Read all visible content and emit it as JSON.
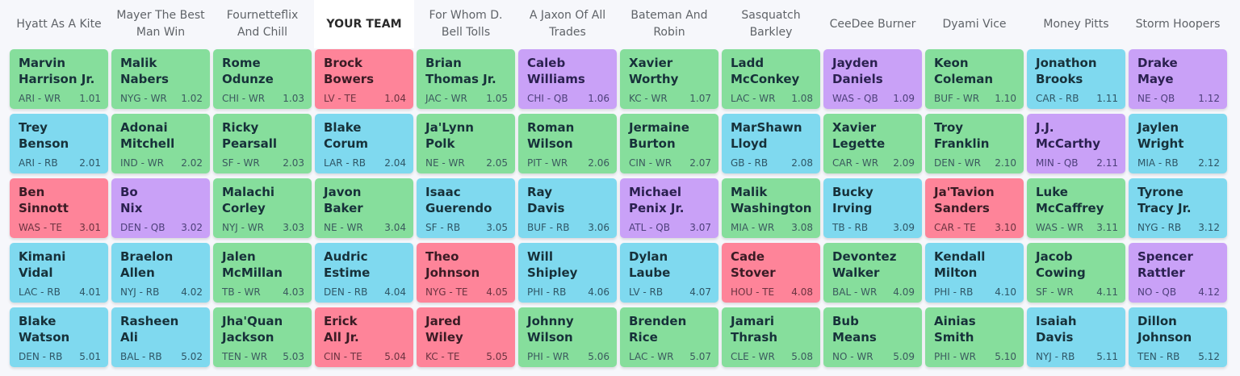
{
  "colors": {
    "WR": "#86de9c",
    "RB": "#7fd9ef",
    "TE": "#fe8499",
    "QB": "#c9a1f7",
    "background": "#f6f7fb",
    "your_team_header_bg": "#ffffff"
  },
  "teams": [
    {
      "name": "Hyatt As A Kite",
      "mine": false
    },
    {
      "name": "Mayer The Best Man Win",
      "mine": false
    },
    {
      "name": "Fournetteflix And Chill",
      "mine": false
    },
    {
      "name": "YOUR TEAM",
      "mine": true
    },
    {
      "name": "For Whom D. Bell Tolls",
      "mine": false
    },
    {
      "name": "A Jaxon Of All Trades",
      "mine": false
    },
    {
      "name": "Bateman And Robin",
      "mine": false
    },
    {
      "name": "Sasquatch Barkley",
      "mine": false
    },
    {
      "name": "CeeDee Burner",
      "mine": false
    },
    {
      "name": "Dyami Vice",
      "mine": false
    },
    {
      "name": "Money Pitts",
      "mine": false
    },
    {
      "name": "Storm Hoopers",
      "mine": false
    }
  ],
  "rounds": [
    [
      {
        "first": "Marvin",
        "last": "Harrison Jr.",
        "team": "ARI",
        "pos": "WR",
        "pick": "1.01"
      },
      {
        "first": "Malik",
        "last": "Nabers",
        "team": "NYG",
        "pos": "WR",
        "pick": "1.02"
      },
      {
        "first": "Rome",
        "last": "Odunze",
        "team": "CHI",
        "pos": "WR",
        "pick": "1.03"
      },
      {
        "first": "Brock",
        "last": "Bowers",
        "team": "LV",
        "pos": "TE",
        "pick": "1.04"
      },
      {
        "first": "Brian",
        "last": "Thomas Jr.",
        "team": "JAC",
        "pos": "WR",
        "pick": "1.05"
      },
      {
        "first": "Caleb",
        "last": "Williams",
        "team": "CHI",
        "pos": "QB",
        "pick": "1.06"
      },
      {
        "first": "Xavier",
        "last": "Worthy",
        "team": "KC",
        "pos": "WR",
        "pick": "1.07"
      },
      {
        "first": "Ladd",
        "last": "McConkey",
        "team": "LAC",
        "pos": "WR",
        "pick": "1.08"
      },
      {
        "first": "Jayden",
        "last": "Daniels",
        "team": "WAS",
        "pos": "QB",
        "pick": "1.09"
      },
      {
        "first": "Keon",
        "last": "Coleman",
        "team": "BUF",
        "pos": "WR",
        "pick": "1.10"
      },
      {
        "first": "Jonathon",
        "last": "Brooks",
        "team": "CAR",
        "pos": "RB",
        "pick": "1.11"
      },
      {
        "first": "Drake",
        "last": "Maye",
        "team": "NE",
        "pos": "QB",
        "pick": "1.12"
      }
    ],
    [
      {
        "first": "Trey",
        "last": "Benson",
        "team": "ARI",
        "pos": "RB",
        "pick": "2.01"
      },
      {
        "first": "Adonai",
        "last": "Mitchell",
        "team": "IND",
        "pos": "WR",
        "pick": "2.02"
      },
      {
        "first": "Ricky",
        "last": "Pearsall",
        "team": "SF",
        "pos": "WR",
        "pick": "2.03"
      },
      {
        "first": "Blake",
        "last": "Corum",
        "team": "LAR",
        "pos": "RB",
        "pick": "2.04"
      },
      {
        "first": "Ja'Lynn",
        "last": "Polk",
        "team": "NE",
        "pos": "WR",
        "pick": "2.05"
      },
      {
        "first": "Roman",
        "last": "Wilson",
        "team": "PIT",
        "pos": "WR",
        "pick": "2.06"
      },
      {
        "first": "Jermaine",
        "last": "Burton",
        "team": "CIN",
        "pos": "WR",
        "pick": "2.07"
      },
      {
        "first": "MarShawn",
        "last": "Lloyd",
        "team": "GB",
        "pos": "RB",
        "pick": "2.08"
      },
      {
        "first": "Xavier",
        "last": "Legette",
        "team": "CAR",
        "pos": "WR",
        "pick": "2.09"
      },
      {
        "first": "Troy",
        "last": "Franklin",
        "team": "DEN",
        "pos": "WR",
        "pick": "2.10"
      },
      {
        "first": "J.J.",
        "last": "McCarthy",
        "team": "MIN",
        "pos": "QB",
        "pick": "2.11"
      },
      {
        "first": "Jaylen",
        "last": "Wright",
        "team": "MIA",
        "pos": "RB",
        "pick": "2.12"
      }
    ],
    [
      {
        "first": "Ben",
        "last": "Sinnott",
        "team": "WAS",
        "pos": "TE",
        "pick": "3.01"
      },
      {
        "first": "Bo",
        "last": "Nix",
        "team": "DEN",
        "pos": "QB",
        "pick": "3.02"
      },
      {
        "first": "Malachi",
        "last": "Corley",
        "team": "NYJ",
        "pos": "WR",
        "pick": "3.03"
      },
      {
        "first": "Javon",
        "last": "Baker",
        "team": "NE",
        "pos": "WR",
        "pick": "3.04"
      },
      {
        "first": "Isaac",
        "last": "Guerendo",
        "team": "SF",
        "pos": "RB",
        "pick": "3.05"
      },
      {
        "first": "Ray",
        "last": "Davis",
        "team": "BUF",
        "pos": "RB",
        "pick": "3.06"
      },
      {
        "first": "Michael",
        "last": "Penix Jr.",
        "team": "ATL",
        "pos": "QB",
        "pick": "3.07"
      },
      {
        "first": "Malik",
        "last": "Washington",
        "team": "MIA",
        "pos": "WR",
        "pick": "3.08"
      },
      {
        "first": "Bucky",
        "last": "Irving",
        "team": "TB",
        "pos": "RB",
        "pick": "3.09"
      },
      {
        "first": "Ja'Tavion",
        "last": "Sanders",
        "team": "CAR",
        "pos": "TE",
        "pick": "3.10"
      },
      {
        "first": "Luke",
        "last": "McCaffrey",
        "team": "WAS",
        "pos": "WR",
        "pick": "3.11"
      },
      {
        "first": "Tyrone",
        "last": "Tracy Jr.",
        "team": "NYG",
        "pos": "RB",
        "pick": "3.12"
      }
    ],
    [
      {
        "first": "Kimani",
        "last": "Vidal",
        "team": "LAC",
        "pos": "RB",
        "pick": "4.01"
      },
      {
        "first": "Braelon",
        "last": "Allen",
        "team": "NYJ",
        "pos": "RB",
        "pick": "4.02"
      },
      {
        "first": "Jalen",
        "last": "McMillan",
        "team": "TB",
        "pos": "WR",
        "pick": "4.03"
      },
      {
        "first": "Audric",
        "last": "Estime",
        "team": "DEN",
        "pos": "RB",
        "pick": "4.04"
      },
      {
        "first": "Theo",
        "last": "Johnson",
        "team": "NYG",
        "pos": "TE",
        "pick": "4.05"
      },
      {
        "first": "Will",
        "last": "Shipley",
        "team": "PHI",
        "pos": "RB",
        "pick": "4.06"
      },
      {
        "first": "Dylan",
        "last": "Laube",
        "team": "LV",
        "pos": "RB",
        "pick": "4.07"
      },
      {
        "first": "Cade",
        "last": "Stover",
        "team": "HOU",
        "pos": "TE",
        "pick": "4.08"
      },
      {
        "first": "Devontez",
        "last": "Walker",
        "team": "BAL",
        "pos": "WR",
        "pick": "4.09"
      },
      {
        "first": "Kendall",
        "last": "Milton",
        "team": "PHI",
        "pos": "RB",
        "pick": "4.10"
      },
      {
        "first": "Jacob",
        "last": "Cowing",
        "team": "SF",
        "pos": "WR",
        "pick": "4.11"
      },
      {
        "first": "Spencer",
        "last": "Rattler",
        "team": "NO",
        "pos": "QB",
        "pick": "4.12"
      }
    ],
    [
      {
        "first": "Blake",
        "last": "Watson",
        "team": "DEN",
        "pos": "RB",
        "pick": "5.01"
      },
      {
        "first": "Rasheen",
        "last": "Ali",
        "team": "BAL",
        "pos": "RB",
        "pick": "5.02"
      },
      {
        "first": "Jha'Quan",
        "last": "Jackson",
        "team": "TEN",
        "pos": "WR",
        "pick": "5.03"
      },
      {
        "first": "Erick",
        "last": "All Jr.",
        "team": "CIN",
        "pos": "TE",
        "pick": "5.04"
      },
      {
        "first": "Jared",
        "last": "Wiley",
        "team": "KC",
        "pos": "TE",
        "pick": "5.05"
      },
      {
        "first": "Johnny",
        "last": "Wilson",
        "team": "PHI",
        "pos": "WR",
        "pick": "5.06"
      },
      {
        "first": "Brenden",
        "last": "Rice",
        "team": "LAC",
        "pos": "WR",
        "pick": "5.07"
      },
      {
        "first": "Jamari",
        "last": "Thrash",
        "team": "CLE",
        "pos": "WR",
        "pick": "5.08"
      },
      {
        "first": "Bub",
        "last": "Means",
        "team": "NO",
        "pos": "WR",
        "pick": "5.09"
      },
      {
        "first": "Ainias",
        "last": "Smith",
        "team": "PHI",
        "pos": "WR",
        "pick": "5.10"
      },
      {
        "first": "Isaiah",
        "last": "Davis",
        "team": "NYJ",
        "pos": "RB",
        "pick": "5.11"
      },
      {
        "first": "Dillon",
        "last": "Johnson",
        "team": "TEN",
        "pos": "RB",
        "pick": "5.12"
      }
    ]
  ]
}
